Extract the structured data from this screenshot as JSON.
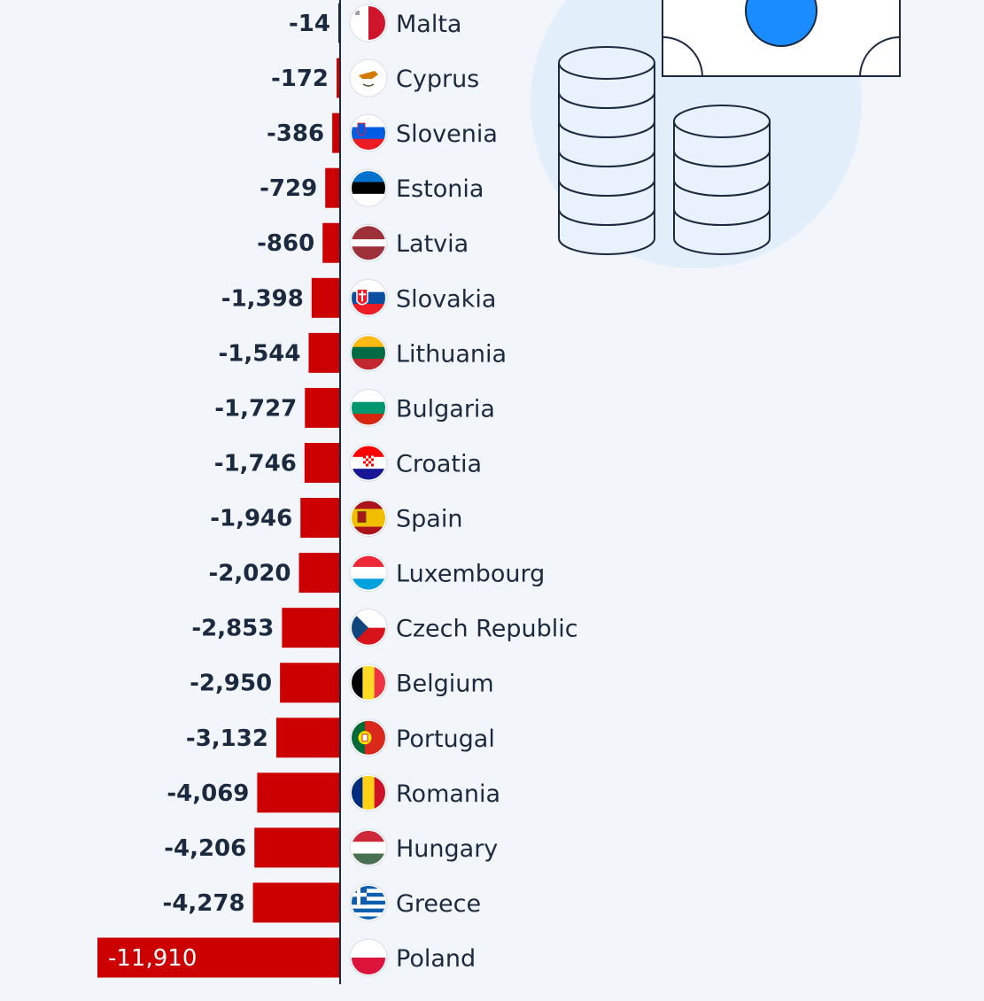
{
  "chart_data": {
    "type": "bar",
    "orientation": "horizontal",
    "categories": [
      "Malta",
      "Cyprus",
      "Slovenia",
      "Estonia",
      "Latvia",
      "Slovakia",
      "Lithuania",
      "Bulgaria",
      "Croatia",
      "Spain",
      "Luxembourg",
      "Czech Republic",
      "Belgium",
      "Portugal",
      "Romania",
      "Hungary",
      "Greece",
      "Poland"
    ],
    "values": [
      -14,
      -172,
      -386,
      -729,
      -860,
      -1398,
      -1544,
      -1727,
      -1746,
      -1946,
      -2020,
      -2853,
      -2950,
      -3132,
      -4069,
      -4206,
      -4278,
      -11910
    ],
    "value_labels": [
      "-14",
      "-172",
      "-386",
      "-729",
      "-860",
      "-1,398",
      "-1,544",
      "-1,727",
      "-1,746",
      "-1,946",
      "-2,020",
      "-2,853",
      "-2,950",
      "-3,132",
      "-4,069",
      "-4,206",
      "-4,278",
      "-11,910"
    ],
    "bar_color": "#cc0000",
    "flag_icons": [
      "malta-flag",
      "cyprus-flag",
      "slovenia-flag",
      "estonia-flag",
      "latvia-flag",
      "slovakia-flag",
      "lithuania-flag",
      "bulgaria-flag",
      "croatia-flag",
      "spain-flag",
      "luxembourg-flag",
      "czech-republic-flag",
      "belgium-flag",
      "portugal-flag",
      "romania-flag",
      "hungary-flag",
      "greece-flag",
      "poland-flag"
    ]
  },
  "decoration": {
    "icons": [
      "coin-stacks-icon",
      "banknote-icon"
    ],
    "circle_color": "#e3eefb",
    "note_dot_color": "#1a8cff",
    "stroke_color": "#1b2a3f"
  }
}
